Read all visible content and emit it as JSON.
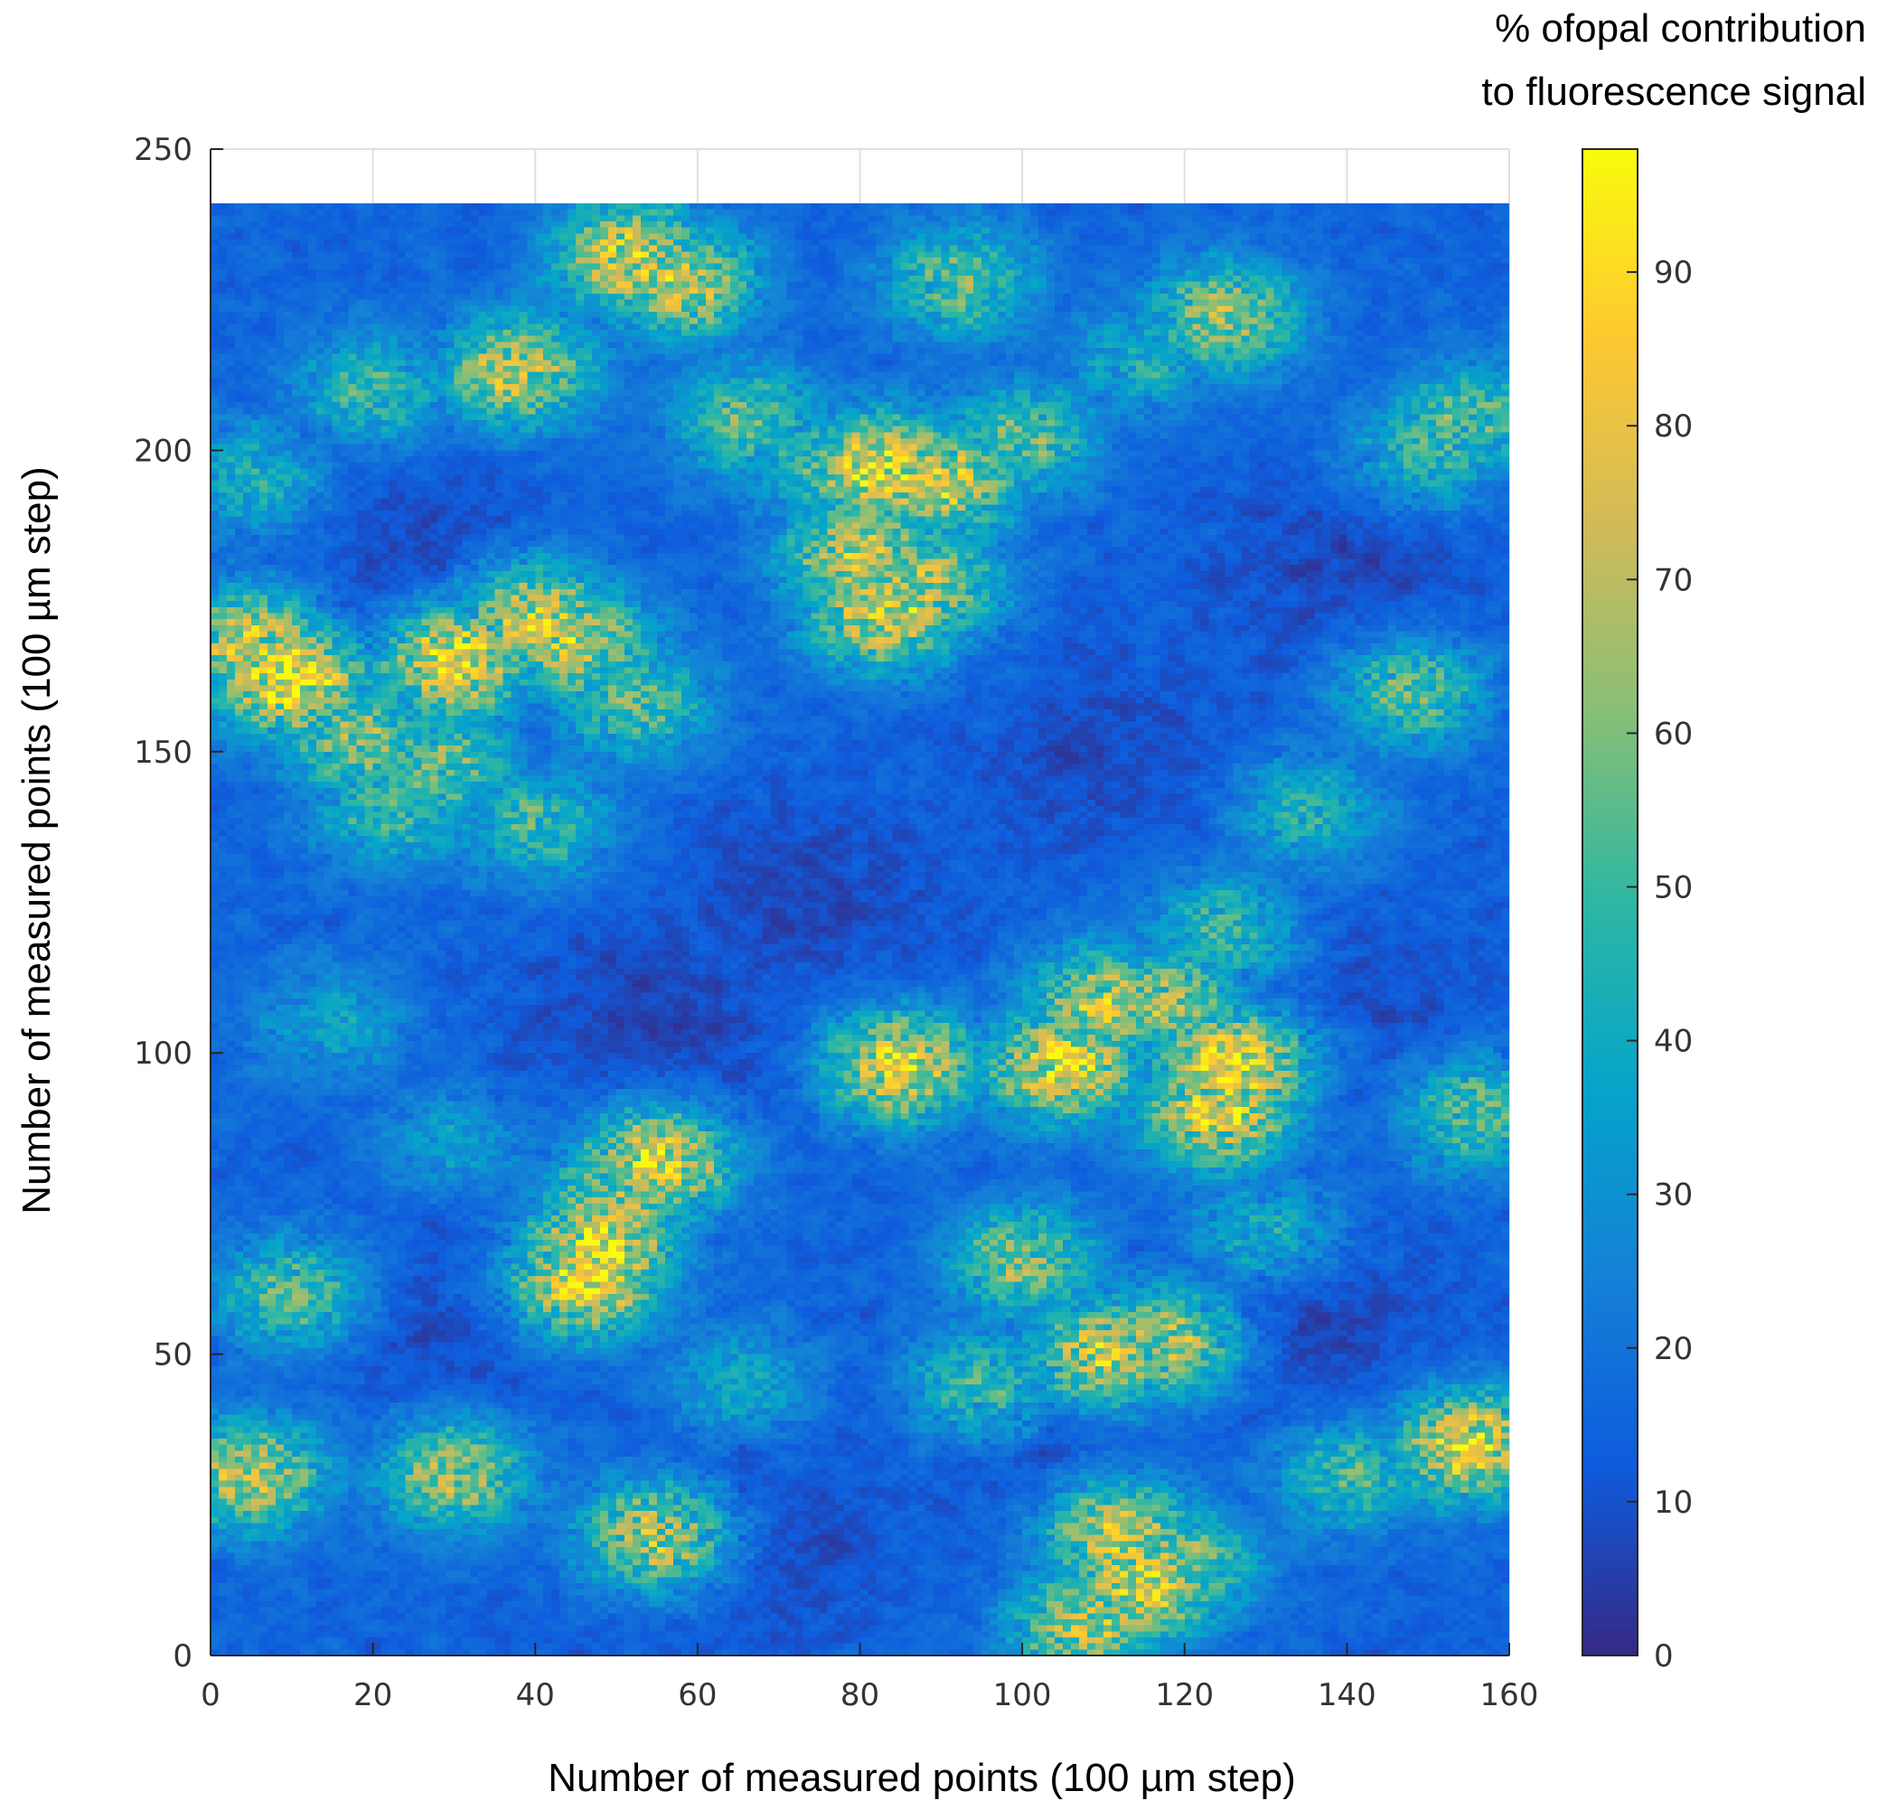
{
  "chart_data": {
    "type": "heatmap",
    "title": "",
    "xlabel": "Number of measured points (100 µm step)",
    "ylabel": "Number of measured points (100 µm step)",
    "xlim": [
      0,
      160
    ],
    "ylim": [
      0,
      250
    ],
    "data_extent": {
      "x": [
        0,
        160
      ],
      "y": [
        0,
        241
      ]
    },
    "x_ticks": [
      "0",
      "20",
      "40",
      "60",
      "80",
      "100",
      "120",
      "140",
      "160"
    ],
    "y_ticks": [
      "0",
      "50",
      "100",
      "150",
      "200",
      "250"
    ],
    "grid": true,
    "colorbar": {
      "label_lines": [
        "% ofopal contribution",
        "to fluorescence signal"
      ],
      "range": [
        0,
        98
      ],
      "ticks": [
        "0",
        "10",
        "20",
        "30",
        "40",
        "50",
        "60",
        "70",
        "80",
        "90"
      ],
      "colormap": "parula",
      "colors": [
        "#352a87",
        "#0f5cdd",
        "#1481d6",
        "#06a4ca",
        "#2eb7a4",
        "#87bf77",
        "#d1bb59",
        "#fec832",
        "#f9fb0e"
      ]
    },
    "background_level": 15,
    "hotspots": [
      {
        "x": 10,
        "y": 162,
        "value": 88
      },
      {
        "x": 5,
        "y": 168,
        "value": 75
      },
      {
        "x": 18,
        "y": 152,
        "value": 62
      },
      {
        "x": 30,
        "y": 165,
        "value": 85
      },
      {
        "x": 40,
        "y": 172,
        "value": 78
      },
      {
        "x": 45,
        "y": 168,
        "value": 72
      },
      {
        "x": 28,
        "y": 148,
        "value": 58
      },
      {
        "x": 22,
        "y": 140,
        "value": 50
      },
      {
        "x": 52,
        "y": 158,
        "value": 55
      },
      {
        "x": 5,
        "y": 195,
        "value": 45
      },
      {
        "x": 20,
        "y": 210,
        "value": 50
      },
      {
        "x": 38,
        "y": 213,
        "value": 72
      },
      {
        "x": 52,
        "y": 232,
        "value": 78
      },
      {
        "x": 58,
        "y": 228,
        "value": 72
      },
      {
        "x": 66,
        "y": 205,
        "value": 55
      },
      {
        "x": 75,
        "y": 198,
        "value": 50
      },
      {
        "x": 83,
        "y": 197,
        "value": 83
      },
      {
        "x": 90,
        "y": 195,
        "value": 75
      },
      {
        "x": 80,
        "y": 183,
        "value": 72
      },
      {
        "x": 83,
        "y": 173,
        "value": 78
      },
      {
        "x": 88,
        "y": 178,
        "value": 68
      },
      {
        "x": 100,
        "y": 202,
        "value": 55
      },
      {
        "x": 92,
        "y": 228,
        "value": 55
      },
      {
        "x": 125,
        "y": 222,
        "value": 65
      },
      {
        "x": 115,
        "y": 215,
        "value": 42
      },
      {
        "x": 150,
        "y": 200,
        "value": 50
      },
      {
        "x": 155,
        "y": 205,
        "value": 55
      },
      {
        "x": 148,
        "y": 160,
        "value": 55
      },
      {
        "x": 156,
        "y": 90,
        "value": 55
      },
      {
        "x": 110,
        "y": 108,
        "value": 70
      },
      {
        "x": 118,
        "y": 108,
        "value": 65
      },
      {
        "x": 105,
        "y": 98,
        "value": 80
      },
      {
        "x": 126,
        "y": 98,
        "value": 85
      },
      {
        "x": 124,
        "y": 90,
        "value": 78
      },
      {
        "x": 85,
        "y": 98,
        "value": 80
      },
      {
        "x": 40,
        "y": 138,
        "value": 50
      },
      {
        "x": 55,
        "y": 82,
        "value": 80
      },
      {
        "x": 50,
        "y": 75,
        "value": 65
      },
      {
        "x": 48,
        "y": 68,
        "value": 82
      },
      {
        "x": 46,
        "y": 62,
        "value": 85
      },
      {
        "x": 10,
        "y": 60,
        "value": 55
      },
      {
        "x": 5,
        "y": 30,
        "value": 70
      },
      {
        "x": 30,
        "y": 30,
        "value": 65
      },
      {
        "x": 55,
        "y": 20,
        "value": 75
      },
      {
        "x": 95,
        "y": 45,
        "value": 55
      },
      {
        "x": 110,
        "y": 50,
        "value": 75
      },
      {
        "x": 118,
        "y": 52,
        "value": 72
      },
      {
        "x": 112,
        "y": 20,
        "value": 75
      },
      {
        "x": 115,
        "y": 12,
        "value": 80
      },
      {
        "x": 108,
        "y": 5,
        "value": 70
      },
      {
        "x": 120,
        "y": 15,
        "value": 60
      },
      {
        "x": 155,
        "y": 35,
        "value": 80
      },
      {
        "x": 140,
        "y": 30,
        "value": 50
      },
      {
        "x": 100,
        "y": 65,
        "value": 60
      },
      {
        "x": 135,
        "y": 140,
        "value": 45
      },
      {
        "x": 125,
        "y": 120,
        "value": 50
      },
      {
        "x": 65,
        "y": 45,
        "value": 40
      },
      {
        "x": 15,
        "y": 105,
        "value": 38
      },
      {
        "x": 130,
        "y": 70,
        "value": 45
      },
      {
        "x": 30,
        "y": 85,
        "value": 35
      }
    ],
    "low_regions": [
      {
        "x": 55,
        "y": 105,
        "value": 6
      },
      {
        "x": 75,
        "y": 125,
        "value": 7
      },
      {
        "x": 65,
        "y": 20,
        "value": 6
      },
      {
        "x": 25,
        "y": 185,
        "value": 8
      },
      {
        "x": 140,
        "y": 180,
        "value": 7
      },
      {
        "x": 110,
        "y": 150,
        "value": 8
      },
      {
        "x": 135,
        "y": 55,
        "value": 6
      },
      {
        "x": 30,
        "y": 55,
        "value": 8
      },
      {
        "x": 100,
        "y": 40,
        "value": 8
      },
      {
        "x": 140,
        "y": 110,
        "value": 9
      }
    ]
  }
}
